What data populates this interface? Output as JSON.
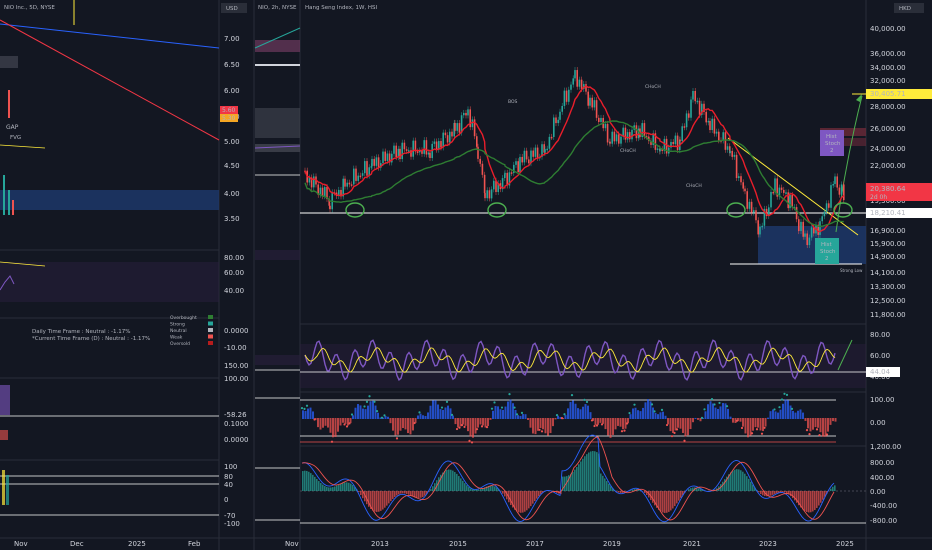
{
  "left_panel": {
    "title": "NIO Inc., 5D, NYSE",
    "currency": "USD",
    "price_ticks": [
      "7.00",
      "6.50",
      "6.00",
      "5.50",
      "5.00",
      "4.50",
      "4.00",
      "3.50"
    ],
    "price_tags": [
      "5.60",
      "5.30"
    ],
    "gap_label": "GAP",
    "gap_sub": "FVG",
    "osc_ticks": [
      "80.00",
      "60.00",
      "40.00"
    ],
    "legend_lines": [
      "Daily Time Frame : Neutral : -1.17%",
      "*Current Time Frame (D) : Neutral : -1.17%"
    ],
    "legend_items": [
      "Overbought",
      "Strong",
      "Neutral",
      "Weak",
      "Oversold"
    ],
    "osc2_ticks": [
      "0.0000",
      "-10.00",
      "150.00",
      "100.00"
    ],
    "osc3_ticks": [
      "-58.26",
      "0.1000",
      "0.0000"
    ],
    "osc4_ticks": [
      "100",
      "80",
      "40",
      "0",
      "-70",
      "-100"
    ],
    "time_ticks": [
      "Nov",
      "Dec",
      "2025",
      "Feb"
    ]
  },
  "mid_panel": {
    "title": "NIO, 2h, NYSE",
    "time_ticks": [
      "Nov"
    ]
  },
  "main_panel": {
    "title": "Hang Seng Index, 1W, HSI",
    "currency": "HKD",
    "price_ticks": [
      "40,000.00",
      "36,000.00",
      "34,000.00",
      "32,000.00",
      "28,000.00",
      "26,000.00",
      "24,000.00",
      "22,000.00",
      "19,300.00",
      "16,900.00",
      "15,900.00",
      "14,900.00",
      "14,100.00",
      "13,300.00",
      "12,500.00",
      "11,800.00"
    ],
    "price_tags": {
      "current": "20,380.64",
      "current_sub": "2d 0h",
      "target": "30,405.71",
      "support": "18,210.41"
    },
    "annotations": {
      "hist_top": "Hist\nStoch\n2",
      "hist_bottom": "Hist\nStoch\n2",
      "bos": "BOS",
      "choch": "CHoCH",
      "strong_low": "Strong Low"
    },
    "rsi_ticks": [
      "80.00",
      "60.00",
      "40.00"
    ],
    "rsi_tag": "44.04",
    "osc_ticks": [
      "100.00",
      "0.00"
    ],
    "macd_ticks": [
      "1,200.00",
      "800.00",
      "400.00",
      "0.00",
      "-400.00",
      "-800.00"
    ],
    "time_ticks": [
      "2013",
      "2015",
      "2017",
      "2019",
      "2021",
      "2023",
      "2025"
    ]
  },
  "colors": {
    "bg": "#131722",
    "up": "#26a69a",
    "down": "#ef5350",
    "ema": "#e91e2b",
    "ma": "#2e7d32",
    "rsi": "#7e57c2",
    "signal": "#ffeb3b",
    "target": "#ffeb3b"
  }
}
